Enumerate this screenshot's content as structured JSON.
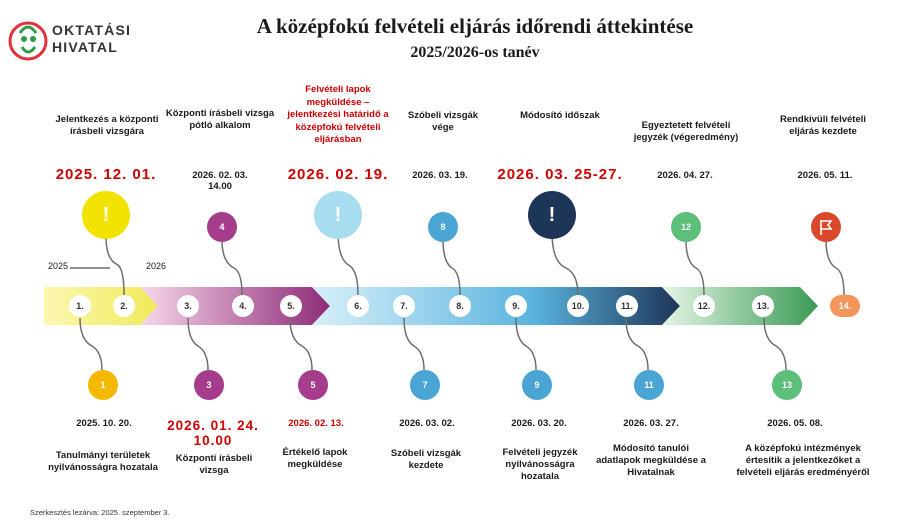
{
  "header": {
    "title": "A középfokú felvételi eljárás időrendi áttekintése",
    "subtitle": "2025/2026-os tanév",
    "logo_line1": "OKTATÁSI",
    "logo_line2": "HIVATAL"
  },
  "years": [
    "2025",
    "2026"
  ],
  "nodes": [
    "1.",
    "2.",
    "3.",
    "4.",
    "5.",
    "6.",
    "7.",
    "8.",
    "9.",
    "10.",
    "11.",
    "12.",
    "13.",
    "14."
  ],
  "top_events": [
    {
      "label": "Jelentkezés a központi írásbeli vizsgára",
      "date": "2025. 12. 01.",
      "badge": "!"
    },
    {
      "label": "Központi írásbeli vizsga pótló alkalom",
      "date": "2026. 02. 03. 14.00",
      "badge": "4"
    },
    {
      "label": "Felvételi lapok megküldése – jelentkezési határidő a középfokú felvételi eljárásban",
      "date": "2026. 02. 19.",
      "badge": "!"
    },
    {
      "label": "Szóbeli vizsgák vége",
      "date": "2026. 03. 19.",
      "badge": "8"
    },
    {
      "label": "Módosító időszak",
      "date": "2026. 03. 25-27.",
      "badge": "!"
    },
    {
      "label": "Egyeztetett felvételi jegyzék (végeredmény)",
      "date": "2026. 04. 27.",
      "badge": "12"
    },
    {
      "label": "Rendkívüli felvételi eljárás kezdete",
      "date": "2026. 05. 11.",
      "badge": "flag-icon"
    }
  ],
  "bottom_events": [
    {
      "badge": "1",
      "date": "2025. 10. 20.",
      "label": "Tanulmányi területek nyilvánosságra hozatala"
    },
    {
      "badge": "3",
      "date": "2026. 01. 24. 10.00",
      "label": "Központi írásbeli vizsga"
    },
    {
      "badge": "5",
      "date": "2026. 02. 13.",
      "label": "Értékelő lapok megküldése"
    },
    {
      "badge": "7",
      "date": "2026. 03. 02.",
      "label": "Szóbeli vizsgák kezdete"
    },
    {
      "badge": "9",
      "date": "2026. 03. 20.",
      "label": "Felvételi jegyzék nyilvánosságra hozatala"
    },
    {
      "badge": "11",
      "date": "2026. 03. 27.",
      "label": "Módosító tanulói adatlapok megküldése a Hivatalnak"
    },
    {
      "badge": "13",
      "date": "2026. 05. 08.",
      "label": "A középfokú intézmények értesítik a jelentkezőket a felvételi eljárás eredményéről"
    }
  ],
  "colors": {
    "yellow": "#f2e200",
    "orange": "#f5b800",
    "magenta": "#a63d8c",
    "light_blue": "#a8ddef",
    "blue": "#4ba5d4",
    "navy": "#1d3557",
    "green": "#5cbf7a",
    "red_orange": "#d9482b",
    "peach": "#f4955a",
    "alert_red": "#d10000"
  },
  "footer": "Szerkesztés lezárva: 2025. szeptember 3."
}
